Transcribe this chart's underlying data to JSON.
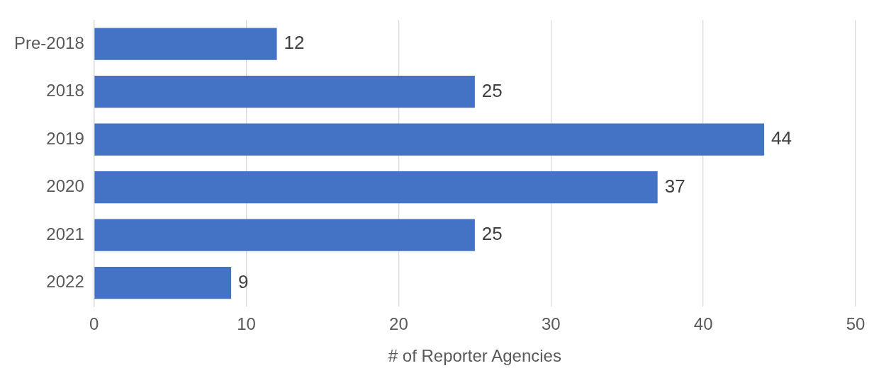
{
  "chart_data": {
    "type": "bar",
    "orientation": "horizontal",
    "xlabel": "# of Reporter Agencies",
    "categories": [
      "Pre-2018",
      "2018",
      "2019",
      "2020",
      "2021",
      "2022"
    ],
    "values": [
      12,
      25,
      44,
      37,
      25,
      9
    ],
    "color": "#4472c4",
    "xlim": [
      0,
      50
    ],
    "xticks": [
      0,
      10,
      20,
      30,
      40,
      50
    ],
    "grid": "x",
    "legend": false,
    "data_labels": true
  }
}
